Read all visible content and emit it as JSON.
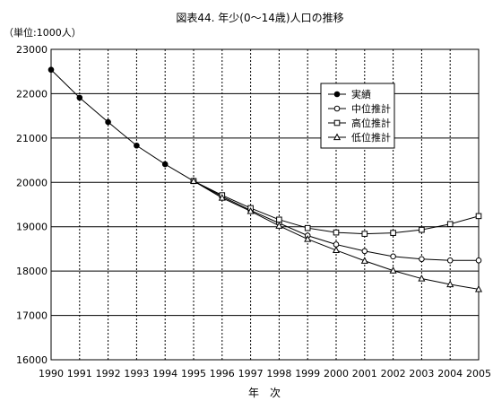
{
  "chart_data": {
    "type": "line",
    "title": "図表44. 年少(0～14歳)人口の推移",
    "unit_label": "（単位:1000人）",
    "xlabel": "年　次",
    "ylabel": "",
    "x": [
      1990,
      1991,
      1992,
      1993,
      1994,
      1995,
      1996,
      1997,
      1998,
      1999,
      2000,
      2001,
      2002,
      2003,
      2004,
      2005
    ],
    "ylim": [
      16000,
      23000
    ],
    "yticks": [
      16000,
      17000,
      18000,
      19000,
      20000,
      21000,
      22000,
      23000
    ],
    "grid": true,
    "legend_position": "upper-right inside plot",
    "series": [
      {
        "name": "実績",
        "marker": "filled-circle",
        "color": "#000000",
        "x": [
          1990,
          1991,
          1992,
          1993,
          1994,
          1995
        ],
        "values": [
          22540,
          21910,
          21360,
          20830,
          20410,
          20030
        ]
      },
      {
        "name": "中位推計",
        "marker": "open-circle",
        "color": "#000000",
        "x": [
          1995,
          1996,
          1997,
          1998,
          1999,
          2000,
          2001,
          2002,
          2003,
          2004,
          2005
        ],
        "values": [
          20030,
          19680,
          19370,
          19080,
          18800,
          18600,
          18450,
          18330,
          18270,
          18240,
          18240
        ]
      },
      {
        "name": "高位推計",
        "marker": "open-square",
        "color": "#000000",
        "x": [
          1995,
          1996,
          1997,
          1998,
          1999,
          2000,
          2001,
          2002,
          2003,
          2004,
          2005
        ],
        "values": [
          20030,
          19710,
          19420,
          19160,
          18970,
          18870,
          18840,
          18860,
          18930,
          19060,
          19240
        ]
      },
      {
        "name": "低位推計",
        "marker": "open-triangle",
        "color": "#000000",
        "x": [
          1995,
          1996,
          1997,
          1998,
          1999,
          2000,
          2001,
          2002,
          2003,
          2004,
          2005
        ],
        "values": [
          20030,
          19650,
          19350,
          19020,
          18720,
          18470,
          18230,
          18010,
          17830,
          17700,
          17590
        ]
      }
    ]
  }
}
